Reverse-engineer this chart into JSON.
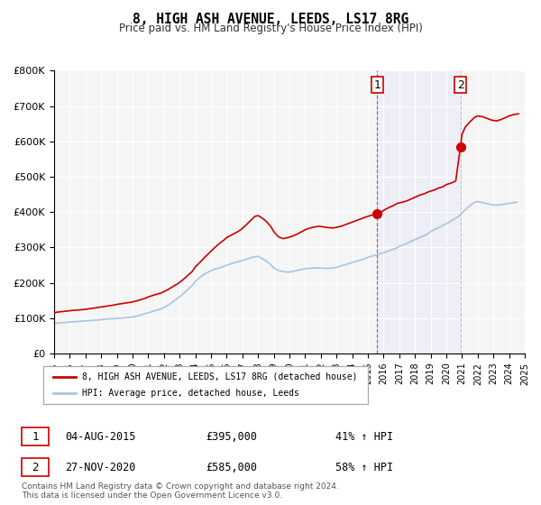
{
  "title": "8, HIGH ASH AVENUE, LEEDS, LS17 8RG",
  "subtitle": "Price paid vs. HM Land Registry's House Price Index (HPI)",
  "ylabel": "",
  "background_color": "#ffffff",
  "plot_bg_color": "#f5f5f5",
  "grid_color": "#ffffff",
  "red_line_color": "#cc0000",
  "blue_line_color": "#aac4dd",
  "marker_color": "#cc0000",
  "vline_color": "#cc0000",
  "annotation_bg": "#f0d0d0",
  "legend_label_red": "8, HIGH ASH AVENUE, LEEDS, LS17 8RG (detached house)",
  "legend_label_blue": "HPI: Average price, detached house, Leeds",
  "point1_x": 2015.585,
  "point1_y": 395000,
  "point1_label": "1",
  "point1_date": "04-AUG-2015",
  "point1_price": "£395,000",
  "point1_hpi": "41% ↑ HPI",
  "point2_x": 2020.9,
  "point2_y": 585000,
  "point2_label": "2",
  "point2_date": "27-NOV-2020",
  "point2_price": "£585,000",
  "point2_hpi": "58% ↑ HPI",
  "xmin": 1995,
  "xmax": 2025,
  "ymin": 0,
  "ymax": 800000,
  "yticks": [
    0,
    100000,
    200000,
    300000,
    400000,
    500000,
    600000,
    700000,
    800000
  ],
  "ytick_labels": [
    "£0",
    "£100K",
    "£200K",
    "£300K",
    "£400K",
    "£500K",
    "£600K",
    "£700K",
    "£800K"
  ],
  "xticks": [
    1995,
    1996,
    1997,
    1998,
    1999,
    2000,
    2001,
    2002,
    2003,
    2004,
    2005,
    2006,
    2007,
    2008,
    2009,
    2010,
    2011,
    2012,
    2013,
    2014,
    2015,
    2016,
    2017,
    2018,
    2019,
    2020,
    2021,
    2022,
    2023,
    2024,
    2025
  ],
  "footer_line1": "Contains HM Land Registry data © Crown copyright and database right 2024.",
  "footer_line2": "This data is licensed under the Open Government Licence v3.0.",
  "red_x": [
    1995.0,
    1995.1,
    1995.2,
    1995.4,
    1995.6,
    1995.8,
    1996.0,
    1996.2,
    1996.5,
    1996.8,
    1997.0,
    1997.3,
    1997.6,
    1997.9,
    1998.2,
    1998.5,
    1998.8,
    1999.0,
    1999.3,
    1999.6,
    1999.9,
    2000.2,
    2000.5,
    2000.8,
    2001.0,
    2001.2,
    2001.5,
    2001.8,
    2002.0,
    2002.3,
    2002.6,
    2002.9,
    2003.2,
    2003.5,
    2003.8,
    2004.0,
    2004.3,
    2004.6,
    2004.9,
    2005.2,
    2005.5,
    2005.8,
    2006.0,
    2006.3,
    2006.6,
    2006.9,
    2007.2,
    2007.5,
    2007.8,
    2008.0,
    2008.2,
    2008.5,
    2008.8,
    2009.0,
    2009.3,
    2009.6,
    2009.9,
    2010.2,
    2010.5,
    2010.8,
    2011.0,
    2011.3,
    2011.6,
    2011.9,
    2012.2,
    2012.5,
    2012.8,
    2013.0,
    2013.3,
    2013.6,
    2013.9,
    2014.2,
    2014.5,
    2014.8,
    2015.0,
    2015.3,
    2015.585,
    2015.8,
    2016.0,
    2016.3,
    2016.6,
    2016.9,
    2017.2,
    2017.5,
    2017.8,
    2018.0,
    2018.3,
    2018.6,
    2018.9,
    2019.2,
    2019.5,
    2019.8,
    2020.0,
    2020.3,
    2020.6,
    2020.9,
    2021.0,
    2021.2,
    2021.5,
    2021.8,
    2022.0,
    2022.3,
    2022.6,
    2022.9,
    2023.2,
    2023.5,
    2023.8,
    2024.0,
    2024.3,
    2024.6
  ],
  "red_y": [
    115000,
    116000,
    117000,
    118000,
    119000,
    120000,
    121000,
    122000,
    123000,
    124000,
    125000,
    127000,
    129000,
    131000,
    133000,
    135000,
    137000,
    139000,
    141000,
    143000,
    145000,
    148000,
    152000,
    156000,
    160000,
    163000,
    167000,
    171000,
    175000,
    182000,
    190000,
    198000,
    208000,
    220000,
    232000,
    245000,
    258000,
    272000,
    285000,
    298000,
    310000,
    320000,
    328000,
    335000,
    342000,
    350000,
    362000,
    375000,
    388000,
    390000,
    385000,
    375000,
    360000,
    345000,
    330000,
    325000,
    328000,
    332000,
    338000,
    345000,
    350000,
    355000,
    358000,
    360000,
    358000,
    356000,
    355000,
    357000,
    360000,
    365000,
    370000,
    375000,
    380000,
    385000,
    388000,
    392000,
    395000,
    398000,
    405000,
    412000,
    418000,
    425000,
    428000,
    432000,
    438000,
    442000,
    448000,
    452000,
    458000,
    462000,
    468000,
    472000,
    478000,
    482000,
    488000,
    585000,
    620000,
    640000,
    655000,
    668000,
    672000,
    670000,
    665000,
    660000,
    658000,
    662000,
    668000,
    672000,
    676000,
    678000
  ],
  "blue_x": [
    1995.0,
    1995.2,
    1995.5,
    1995.8,
    1996.0,
    1996.3,
    1996.6,
    1996.9,
    1997.2,
    1997.5,
    1997.8,
    1998.0,
    1998.3,
    1998.6,
    1998.9,
    1999.2,
    1999.5,
    1999.8,
    2000.0,
    2000.3,
    2000.6,
    2000.9,
    2001.2,
    2001.5,
    2001.8,
    2002.0,
    2002.3,
    2002.6,
    2002.9,
    2003.2,
    2003.5,
    2003.8,
    2004.0,
    2004.3,
    2004.6,
    2004.9,
    2005.2,
    2005.5,
    2005.8,
    2006.0,
    2006.3,
    2006.6,
    2006.9,
    2007.2,
    2007.5,
    2007.8,
    2008.0,
    2008.2,
    2008.5,
    2008.8,
    2009.0,
    2009.3,
    2009.6,
    2009.9,
    2010.2,
    2010.5,
    2010.8,
    2011.0,
    2011.3,
    2011.6,
    2011.9,
    2012.2,
    2012.5,
    2012.8,
    2013.0,
    2013.3,
    2013.6,
    2013.9,
    2014.2,
    2014.5,
    2014.8,
    2015.0,
    2015.3,
    2015.6,
    2015.9,
    2016.2,
    2016.5,
    2016.8,
    2017.0,
    2017.3,
    2017.6,
    2017.9,
    2018.2,
    2018.5,
    2018.8,
    2019.0,
    2019.3,
    2019.6,
    2019.9,
    2020.2,
    2020.5,
    2020.8,
    2021.0,
    2021.3,
    2021.6,
    2021.9,
    2022.2,
    2022.5,
    2022.8,
    2023.0,
    2023.3,
    2023.6,
    2023.9,
    2024.2,
    2024.5
  ],
  "blue_y": [
    85000,
    86000,
    87000,
    88000,
    89000,
    90000,
    91000,
    92000,
    93000,
    94000,
    95000,
    96000,
    97000,
    98000,
    99000,
    100000,
    101000,
    102000,
    103000,
    106000,
    110000,
    114000,
    118000,
    122000,
    126000,
    130000,
    138000,
    147000,
    157000,
    168000,
    180000,
    192000,
    204000,
    216000,
    225000,
    232000,
    238000,
    242000,
    246000,
    250000,
    254000,
    258000,
    262000,
    266000,
    270000,
    274000,
    275000,
    270000,
    262000,
    252000,
    242000,
    235000,
    232000,
    230000,
    232000,
    235000,
    238000,
    240000,
    241000,
    242000,
    242000,
    241000,
    241000,
    242000,
    244000,
    248000,
    252000,
    256000,
    260000,
    264000,
    268000,
    272000,
    276000,
    280000,
    284000,
    288000,
    293000,
    298000,
    303000,
    308000,
    314000,
    320000,
    326000,
    332000,
    338000,
    345000,
    352000,
    358000,
    365000,
    372000,
    380000,
    388000,
    398000,
    410000,
    422000,
    430000,
    428000,
    425000,
    422000,
    420000,
    420000,
    422000,
    424000,
    426000,
    428000
  ]
}
